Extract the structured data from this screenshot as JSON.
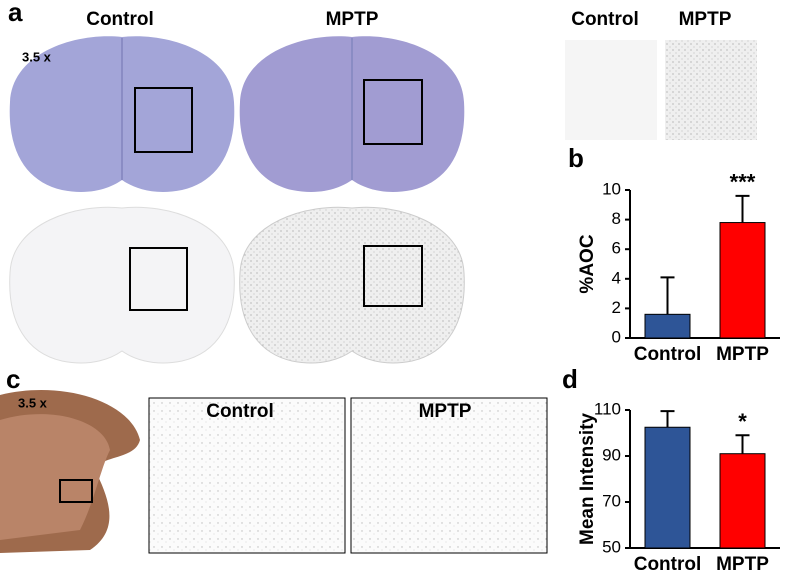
{
  "panels": {
    "a": {
      "label": "a",
      "magnification": "3.5 x",
      "columns": [
        "Control",
        "MPTP"
      ],
      "inset_columns": [
        "Control",
        "MPTP"
      ]
    },
    "b": {
      "label": "b"
    },
    "c": {
      "label": "c",
      "magnification": "3.5 x",
      "columns": [
        "Control",
        "MPTP"
      ]
    },
    "d": {
      "label": "d"
    }
  },
  "chart_data": [
    {
      "type": "bar",
      "categories": [
        "Control",
        "MPTP"
      ],
      "values": [
        1.6,
        7.8
      ],
      "errors": [
        2.5,
        1.8
      ],
      "colors": [
        "#2e5597",
        "#ff0000"
      ],
      "ylabel": "%AOC",
      "ylim": [
        0,
        10
      ],
      "yticks": [
        0,
        2,
        4,
        6,
        8,
        10
      ],
      "annotations": [
        {
          "category": "MPTP",
          "text": "***"
        }
      ]
    },
    {
      "type": "bar",
      "categories": [
        "Control",
        "MPTP"
      ],
      "values": [
        102.5,
        91
      ],
      "errors": [
        7,
        8
      ],
      "colors": [
        "#2e5597",
        "#ff0000"
      ],
      "ylabel": "Mean Intensity",
      "ylim": [
        50,
        110
      ],
      "yticks": [
        50,
        70,
        90,
        110
      ],
      "annotations": [
        {
          "category": "MPTP",
          "text": "*"
        }
      ]
    }
  ]
}
